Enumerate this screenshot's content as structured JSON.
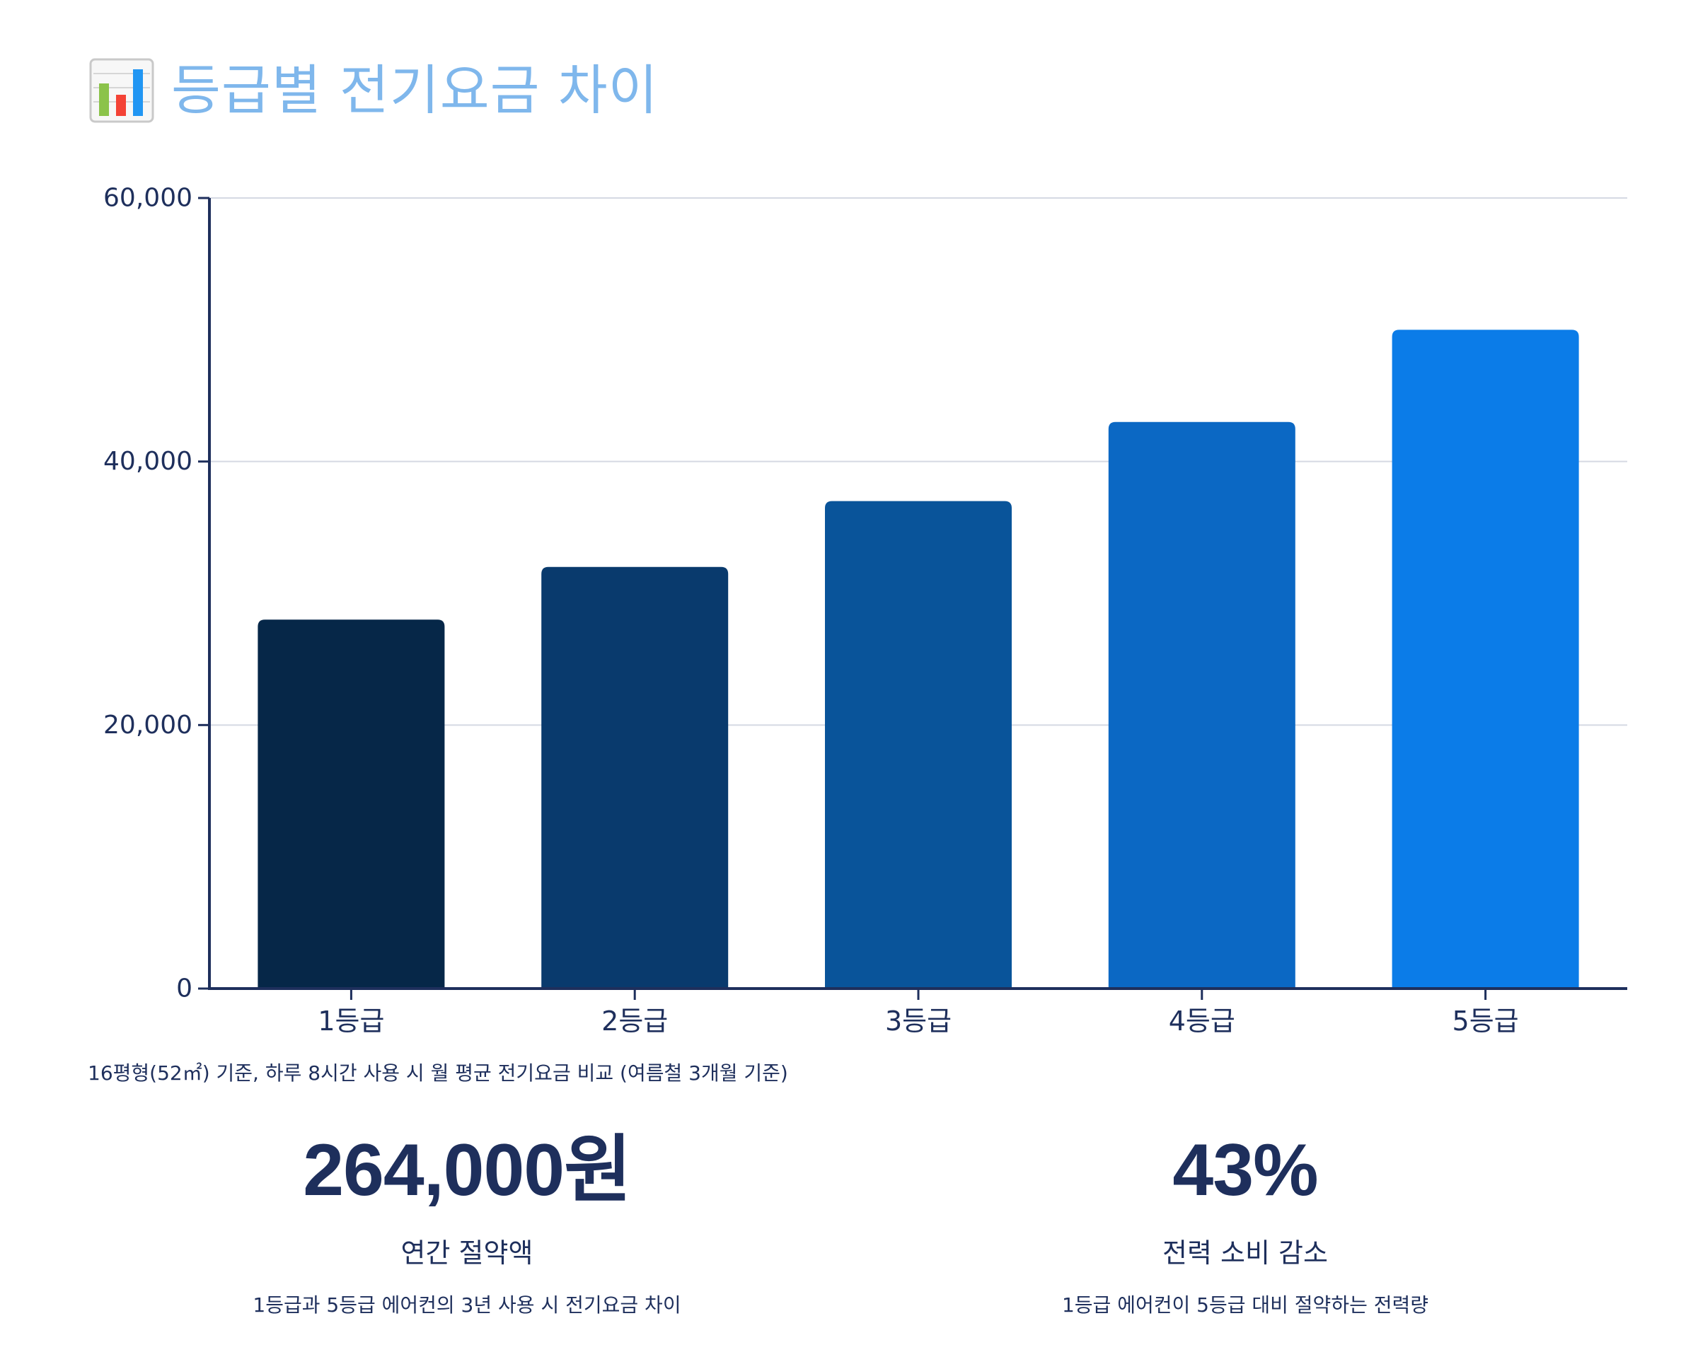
{
  "title": "등급별 전기요금 차이",
  "title_icon": "bar-chart-icon",
  "caption": "16평형(52㎡) 기준, 하루 8시간 사용 시 월 평균 전기요금 비교 (여름철 3개월 기준)",
  "chart_data": {
    "type": "bar",
    "categories": [
      "1등급",
      "2등급",
      "3등급",
      "4등급",
      "5등급"
    ],
    "values": [
      28000,
      32000,
      37000,
      43000,
      50000
    ],
    "colors": [
      "#062748",
      "#093a6d",
      "#09549a",
      "#0b68c4",
      "#0b7ce8"
    ],
    "ylim": [
      0,
      60000
    ],
    "yticks": [
      0,
      20000,
      40000,
      60000
    ],
    "ytick_labels": [
      "0",
      "20,000",
      "40,000",
      "60,000"
    ],
    "grid": true,
    "xlabel": "",
    "ylabel": ""
  },
  "stats": [
    {
      "value": "264,000원",
      "label": "연간 절약액",
      "description": "1등급과 5등급 에어컨의 3년 사용 시 전기요금 차이"
    },
    {
      "value": "43%",
      "label": "전력 소비 감소",
      "description": "1등급 에어컨이 5등급 대비 절약하는 전력량"
    }
  ]
}
